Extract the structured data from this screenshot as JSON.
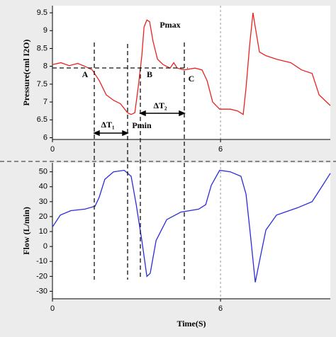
{
  "chart_data": [
    {
      "type": "line",
      "ylabel": "Pressure(cml I2O)",
      "x": [
        0,
        0.3,
        0.6,
        0.9,
        1.16,
        1.42,
        1.67,
        1.92,
        2.18,
        2.43,
        2.68,
        2.81,
        2.94,
        3.06,
        3.19,
        3.27,
        3.37,
        3.47,
        3.59,
        3.75,
        3.95,
        4.2,
        4.33,
        4.46,
        4.71,
        5.09,
        5.34,
        5.52,
        5.72,
        5.97,
        6.35,
        6.61,
        6.81,
        6.91,
        7.04,
        7.16,
        7.24,
        7.39,
        7.62,
        8.0,
        8.51,
        8.89,
        9.27,
        9.52,
        9.92
      ],
      "values": [
        8.05,
        8.1,
        8.02,
        8.08,
        8.0,
        7.9,
        7.6,
        7.2,
        7.05,
        6.95,
        6.7,
        6.65,
        6.7,
        7.4,
        8.3,
        9.1,
        9.3,
        9.25,
        8.7,
        8.2,
        8.05,
        7.95,
        8.1,
        7.95,
        7.9,
        7.95,
        7.9,
        7.6,
        7.0,
        6.8,
        6.8,
        6.75,
        6.65,
        7.4,
        8.6,
        9.5,
        9.1,
        8.4,
        8.3,
        8.2,
        8.1,
        7.9,
        7.8,
        7.2,
        6.9
      ],
      "color": "#e8231f",
      "xlim": [
        0,
        9.92
      ],
      "xticks": [
        0,
        6
      ],
      "ylim": [
        5.95,
        9.7
      ],
      "yticks": [
        6,
        6.5,
        7,
        7.5,
        8,
        8.5,
        9,
        9.5
      ],
      "grid": "x",
      "annotations": [
        "A",
        "B",
        "C",
        "Pmax",
        "Pmin",
        "ΔT₁",
        "ΔT₂"
      ]
    },
    {
      "type": "line",
      "ylabel": "Flow (L/min)",
      "xlabel": "Time(S)",
      "x": [
        0,
        0.28,
        0.66,
        1.16,
        1.52,
        1.67,
        1.87,
        2.18,
        2.56,
        2.81,
        2.99,
        3.19,
        3.37,
        3.49,
        3.7,
        4.08,
        4.58,
        5.22,
        5.47,
        5.67,
        5.97,
        6.35,
        6.73,
        6.91,
        7.06,
        7.24,
        7.39,
        7.62,
        8.0,
        8.76,
        9.27,
        9.65,
        9.92
      ],
      "values": [
        13,
        21,
        24,
        25,
        27,
        33,
        45,
        50,
        51,
        47,
        28,
        4,
        -20,
        -18,
        4,
        18,
        23,
        25,
        28,
        41,
        51,
        50,
        47,
        35,
        9,
        -24,
        -10,
        11,
        21,
        26,
        30,
        41,
        49
      ],
      "color": "#2b2bd9",
      "xlim": [
        0,
        9.92
      ],
      "xticks": [
        0,
        6
      ],
      "ylim": [
        -35,
        56
      ],
      "yticks": [
        -30,
        -20,
        -10,
        0,
        10,
        20,
        30,
        40,
        50
      ],
      "grid": "x"
    }
  ]
}
